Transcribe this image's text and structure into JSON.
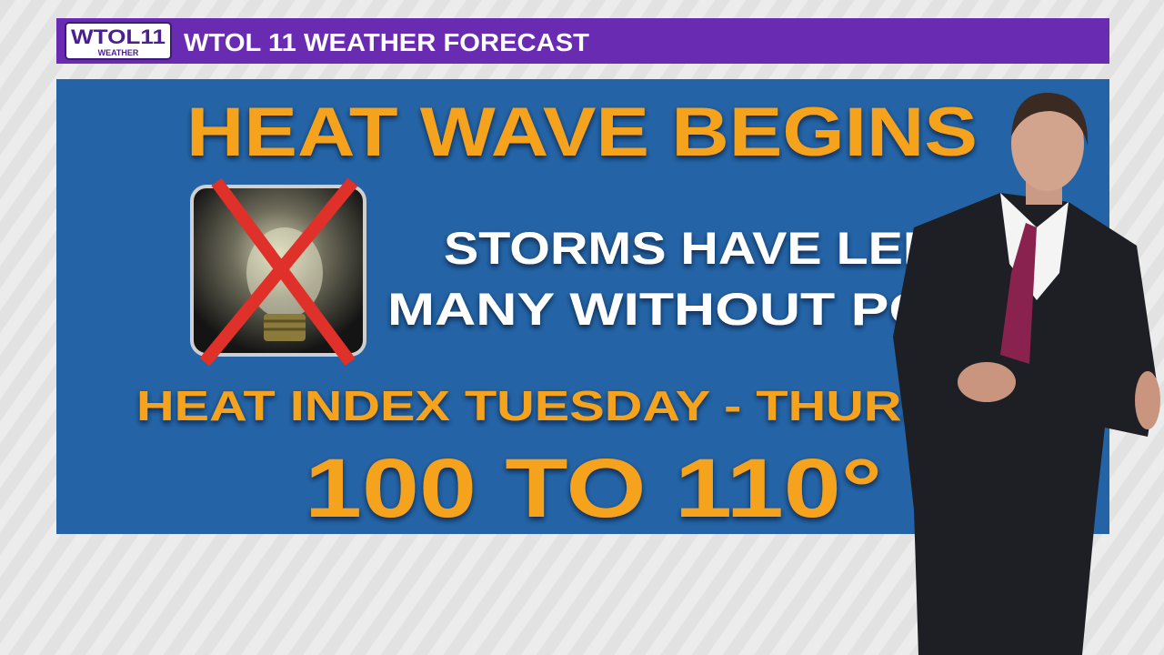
{
  "header": {
    "logo": "WTOL11",
    "logo_sub": "WEATHER",
    "title": "WTOL 11 WEATHER FORECAST"
  },
  "graphic": {
    "headline": "HEAT WAVE BEGINS",
    "lines": [
      "STORMS HAVE LEF",
      "MANY WITHOUT PO"
    ],
    "heat_index_label": "HEAT INDEX TUESDAY - THURS",
    "heat_index_range": "100 TO 110°"
  }
}
